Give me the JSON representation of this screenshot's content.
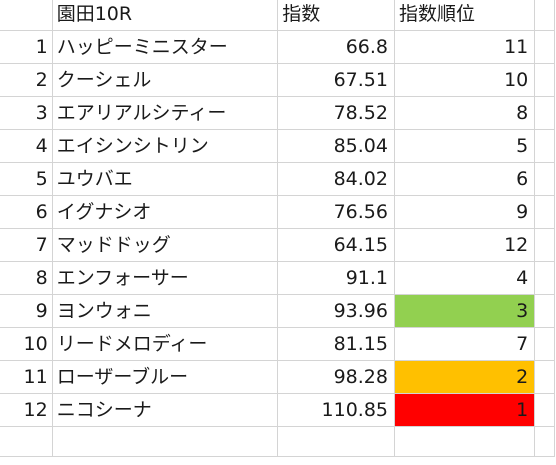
{
  "sheet": {
    "header": {
      "row_number": "",
      "name": "園田10R",
      "index": "指数",
      "rank": "指数順位"
    },
    "rows": [
      {
        "num": "1",
        "name": "ハッピーミニスター",
        "index": "66.8",
        "rank": "11",
        "fill": ""
      },
      {
        "num": "2",
        "name": "クーシェル",
        "index": "67.51",
        "rank": "10",
        "fill": ""
      },
      {
        "num": "3",
        "name": "エアリアルシティー",
        "index": "78.52",
        "rank": "8",
        "fill": ""
      },
      {
        "num": "4",
        "name": "エイシンシトリン",
        "index": "85.04",
        "rank": "5",
        "fill": ""
      },
      {
        "num": "5",
        "name": "ユウバエ",
        "index": "84.02",
        "rank": "6",
        "fill": ""
      },
      {
        "num": "6",
        "name": "イグナシオ",
        "index": "76.56",
        "rank": "9",
        "fill": ""
      },
      {
        "num": "7",
        "name": "マッドドッグ",
        "index": "64.15",
        "rank": "12",
        "fill": ""
      },
      {
        "num": "8",
        "name": "エンフォーサー",
        "index": "91.1",
        "rank": "4",
        "fill": ""
      },
      {
        "num": "9",
        "name": "ヨンウォニ",
        "index": "93.96",
        "rank": "3",
        "fill": "#92d050"
      },
      {
        "num": "10",
        "name": "リードメロディー",
        "index": "81.15",
        "rank": "7",
        "fill": ""
      },
      {
        "num": "11",
        "name": "ローザーブルー",
        "index": "98.28",
        "rank": "2",
        "fill": "#ffc000"
      },
      {
        "num": "12",
        "name": "ニコシーナ",
        "index": "110.85",
        "rank": "1",
        "fill": "#ff0000"
      }
    ]
  }
}
